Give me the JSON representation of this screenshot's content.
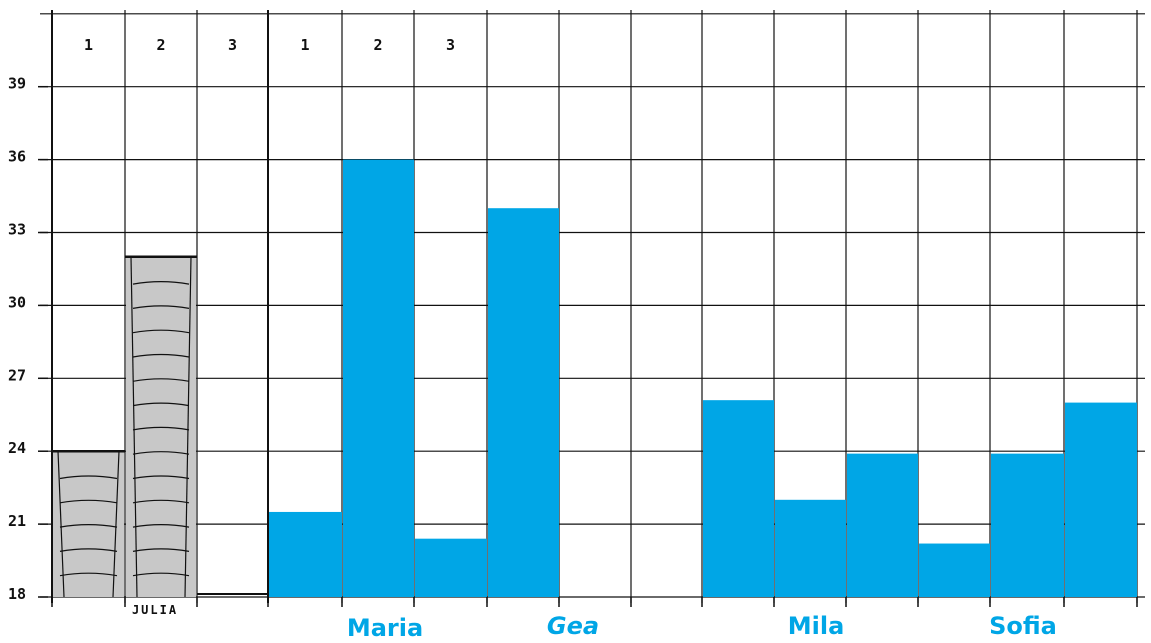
{
  "colors": {
    "blue": "#00a6e6",
    "grey": "#c8c8c8",
    "ink": "#111111"
  },
  "chart_data": {
    "type": "bar",
    "y_ticks": [
      "18",
      "21",
      "24",
      "27",
      "30",
      "33",
      "36",
      "39"
    ],
    "ylim": [
      18,
      42
    ],
    "grid": true,
    "column_headers": [
      "1",
      "2",
      "3",
      "1",
      "2",
      "3"
    ],
    "groups": [
      {
        "name": "JULIA",
        "color": "grey",
        "values": [
          24,
          32,
          18
        ]
      },
      {
        "name": "Maria",
        "color": "blue",
        "values": [
          21.5,
          36,
          20.4
        ]
      },
      {
        "name": "Gea",
        "color": "blue",
        "values": [
          34
        ]
      },
      {
        "name": "Mila",
        "color": "blue",
        "values": [
          26.1,
          22,
          23.9
        ]
      },
      {
        "name": "Sofia",
        "color": "blue",
        "values": [
          20.2,
          23.9,
          26
        ]
      }
    ]
  }
}
